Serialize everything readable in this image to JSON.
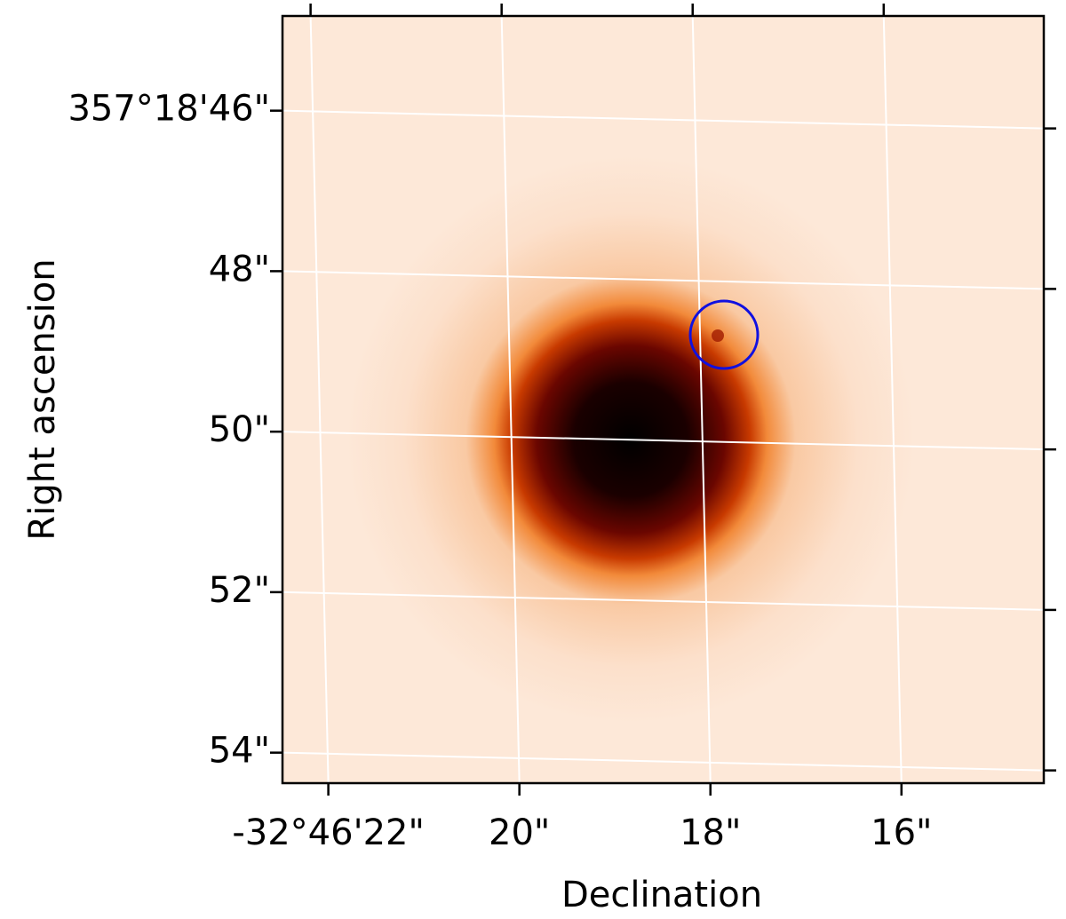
{
  "chart_data": {
    "type": "image",
    "xlabel": "Declination",
    "ylabel": "Right ascension",
    "xlim": [
      22.48,
      14.51
    ],
    "ylim": [
      44.82,
      54.38
    ],
    "xticks": [
      {
        "value": 22,
        "label": "-32°46'22\""
      },
      {
        "value": 20,
        "label": "20\""
      },
      {
        "value": 18,
        "label": "18\""
      },
      {
        "value": 16,
        "label": "16\""
      }
    ],
    "yticks": [
      {
        "value": 46,
        "label": "357°18'46\""
      },
      {
        "value": 48,
        "label": "48\""
      },
      {
        "value": 50,
        "label": "50\""
      },
      {
        "value": 52,
        "label": "52\""
      },
      {
        "value": 54,
        "label": "54\""
      }
    ],
    "grid": true
  }
}
